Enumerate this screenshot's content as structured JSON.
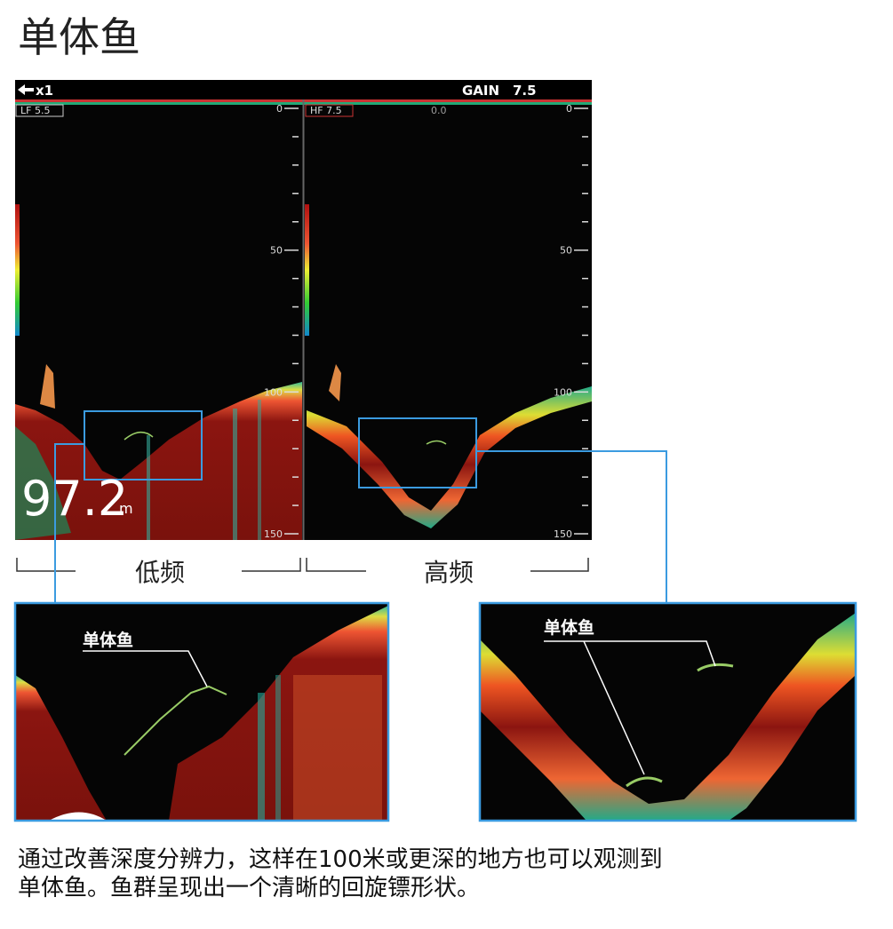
{
  "title": "单体鱼",
  "screen": {
    "zoom": "x1",
    "gain_label": "GAIN",
    "gain_value": "7.5",
    "left_panel": {
      "mode": "LF 5.5",
      "depth_labels": [
        "0",
        "50",
        "100",
        "150"
      ]
    },
    "right_panel": {
      "mode": "HF 7.5",
      "shift": "0.0",
      "depth_labels": [
        "0",
        "50",
        "100",
        "150"
      ]
    },
    "depth": "97.2",
    "depth_unit": "m"
  },
  "bands": {
    "low": "低频",
    "high": "高频"
  },
  "callouts": {
    "left": "单体鱼",
    "right": "单体鱼"
  },
  "caption": [
    "通过改善深度分辨力，这样在100米或更深的地方也可以观测到",
    "单体鱼。鱼群呈现出一个清晰的回旋镖形状。"
  ]
}
